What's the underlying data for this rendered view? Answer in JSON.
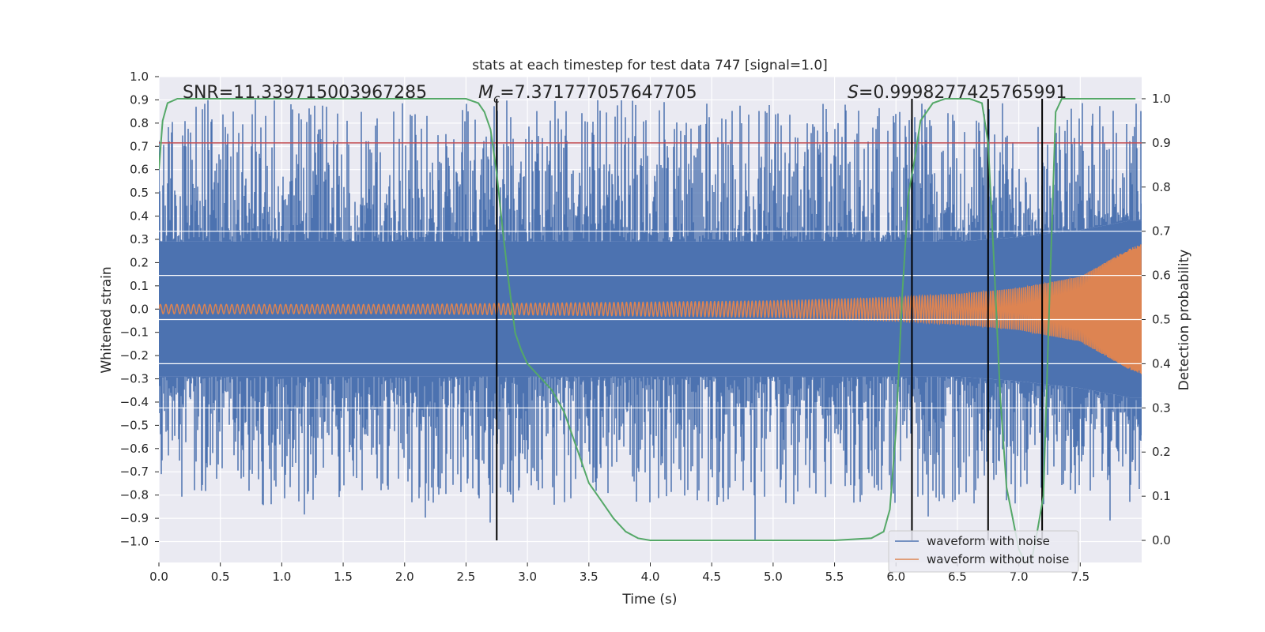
{
  "chart_data": {
    "type": "line",
    "title": "stats at each timestep for test data 747 [signal=1.0]",
    "xlabel": "Time (s)",
    "ylabel": "Whitened strain",
    "y2label": "Detection probability",
    "xlim": [
      0.0,
      8.0
    ],
    "ylim": [
      -1.09,
      1.0
    ],
    "y2lim": [
      -0.05,
      1.05
    ],
    "grid": true,
    "legend_position": "bottom-right",
    "xticks": [
      0.0,
      0.5,
      1.0,
      1.5,
      2.0,
      2.5,
      3.0,
      3.5,
      4.0,
      4.5,
      5.0,
      5.5,
      6.0,
      6.5,
      7.0,
      7.5
    ],
    "xtick_labels": [
      "0.0",
      "0.5",
      "1.0",
      "1.5",
      "2.0",
      "2.5",
      "3.0",
      "3.5",
      "4.0",
      "4.5",
      "5.0",
      "5.5",
      "6.0",
      "6.5",
      "7.0",
      "7.5"
    ],
    "yticks": [
      1.0,
      0.9,
      0.8,
      0.7,
      0.6,
      0.5,
      0.4,
      0.3,
      0.2,
      0.1,
      0.0,
      -0.1,
      -0.2,
      -0.3,
      -0.4,
      -0.5,
      -0.6,
      -0.7,
      -0.8,
      -0.9,
      -1.0
    ],
    "ytick_labels": [
      "1.0",
      "0.9",
      "0.8",
      "0.7",
      "0.6",
      "0.5",
      "0.4",
      "0.3",
      "0.2",
      "0.1",
      "0.0",
      "−0.1",
      "−0.2",
      "−0.3",
      "−0.4",
      "−0.5",
      "−0.6",
      "−0.7",
      "−0.8",
      "−0.9",
      "−1.0"
    ],
    "y2ticks": [
      1.0,
      0.9,
      0.8,
      0.7,
      0.6,
      0.5,
      0.4,
      0.3,
      0.2,
      0.1,
      0.0
    ],
    "y2tick_labels": [
      "1.0",
      "0.9",
      "0.8",
      "0.7",
      "0.6",
      "0.5",
      "0.4",
      "0.3",
      "0.2",
      "0.1",
      "0.0"
    ],
    "annotations": {
      "snr": "SNR=11.339715003967285",
      "mc_symbol": "M",
      "mc_sub": "c",
      "mc_value": "=7.371777057647705",
      "s_symbol": "S",
      "s_value": "=0.9998277425765991"
    },
    "threshold": {
      "axis": "y2",
      "value": 0.9,
      "color": "#c44e52"
    },
    "vertical_markers": [
      {
        "x": 2.75,
        "y2_from": 0.0,
        "y2_to": 1.0
      },
      {
        "x": 6.13,
        "y2_from": 0.0,
        "y2_to": 1.0
      },
      {
        "x": 6.75,
        "y2_from": 0.0,
        "y2_to": 1.0
      },
      {
        "x": 7.19,
        "y2_from": 0.0,
        "y2_to": 1.0
      }
    ],
    "series": [
      {
        "name": "waveform with noise",
        "color": "#4c72b0",
        "axis": "y",
        "kind": "noise_band",
        "t": [
          0.0,
          1.0,
          2.0,
          3.0,
          4.0,
          5.0,
          6.0,
          6.5,
          7.0,
          7.5,
          7.9,
          8.0
        ],
        "core_amplitude": [
          0.29,
          0.29,
          0.29,
          0.29,
          0.29,
          0.29,
          0.29,
          0.29,
          0.31,
          0.34,
          0.38,
          0.38
        ],
        "peak_max": 0.9,
        "peak_min": -1.0
      },
      {
        "name": "waveform without noise",
        "color": "#dd8452",
        "axis": "y",
        "kind": "chirp",
        "t": [
          0.0,
          1.0,
          2.0,
          3.0,
          4.0,
          5.0,
          6.0,
          6.5,
          7.0,
          7.5,
          7.9,
          8.0
        ],
        "amplitude": [
          0.02,
          0.02,
          0.02,
          0.025,
          0.03,
          0.035,
          0.05,
          0.065,
          0.09,
          0.14,
          0.26,
          0.28
        ],
        "frequency_hz": [
          22,
          23,
          25,
          27,
          30,
          34,
          42,
          48,
          58,
          75,
          105,
          110
        ]
      },
      {
        "name": "Detection probability",
        "color": "#55a868",
        "axis": "y2",
        "in_legend": false,
        "x": [
          0.0,
          0.03,
          0.07,
          0.15,
          0.5,
          1.0,
          1.5,
          2.0,
          2.5,
          2.6,
          2.65,
          2.7,
          2.75,
          2.8,
          2.85,
          2.9,
          2.95,
          3.0,
          3.1,
          3.2,
          3.3,
          3.4,
          3.5,
          3.6,
          3.7,
          3.8,
          3.9,
          4.0,
          4.2,
          4.5,
          5.0,
          5.5,
          5.8,
          5.9,
          5.95,
          6.0,
          6.05,
          6.1,
          6.15,
          6.2,
          6.3,
          6.4,
          6.5,
          6.6,
          6.7,
          6.75,
          6.8,
          6.85,
          6.9,
          6.95,
          7.0,
          7.05,
          7.1,
          7.15,
          7.2,
          7.25,
          7.3,
          7.35,
          7.4,
          7.6,
          7.8,
          7.95
        ],
        "y": [
          0.84,
          0.95,
          0.99,
          1.0,
          1.0,
          1.0,
          1.0,
          1.0,
          1.0,
          0.99,
          0.97,
          0.93,
          0.83,
          0.7,
          0.58,
          0.47,
          0.43,
          0.4,
          0.37,
          0.34,
          0.29,
          0.21,
          0.13,
          0.09,
          0.05,
          0.02,
          0.005,
          0.0,
          0.0,
          0.0,
          0.0,
          0.0,
          0.005,
          0.02,
          0.07,
          0.25,
          0.55,
          0.78,
          0.86,
          0.95,
          0.99,
          1.0,
          1.0,
          1.0,
          0.99,
          0.9,
          0.62,
          0.32,
          0.12,
          0.05,
          -0.02,
          -0.05,
          -0.05,
          0.02,
          0.1,
          0.55,
          0.97,
          1.0,
          1.0,
          1.0,
          1.0,
          1.0
        ]
      }
    ]
  }
}
